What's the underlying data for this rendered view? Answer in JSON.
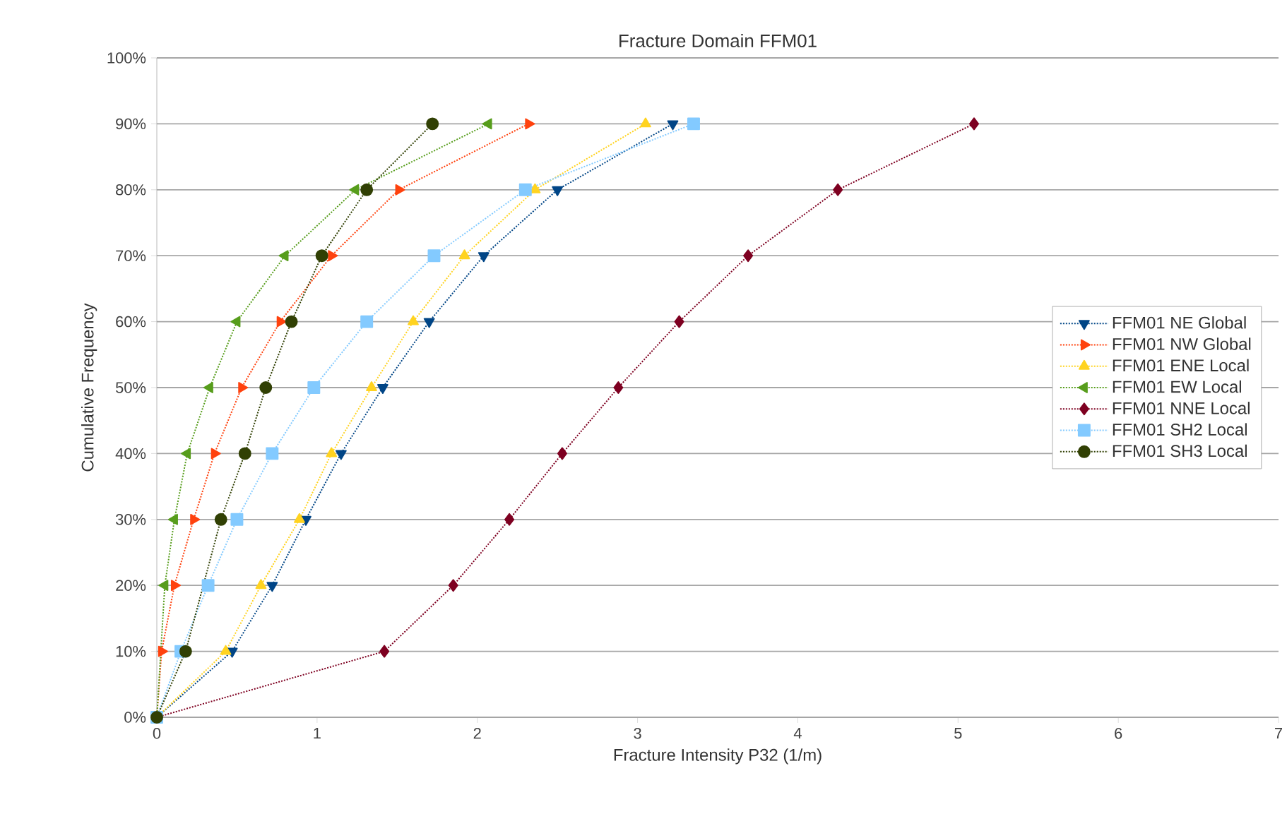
{
  "chart_data": {
    "type": "line",
    "title": "Fracture Domain FFM01",
    "xlabel": "Fracture Intensity P32 (1/m)",
    "ylabel": "Cumulative Frequency",
    "x": [
      0,
      10,
      20,
      30,
      40,
      50,
      60,
      70,
      80,
      90
    ],
    "series": [
      {
        "name": "FFM01 NE Global",
        "color": "#004586",
        "marker": "triangle down",
        "values": [
          0,
          0.47,
          0.72,
          0.93,
          1.15,
          1.41,
          1.7,
          2.04,
          2.5,
          3.22
        ]
      },
      {
        "name": "FFM01 NW Global",
        "color": "#ff420e",
        "marker": "triangle right",
        "values": [
          0,
          0.03,
          0.11,
          0.23,
          0.36,
          0.53,
          0.77,
          1.09,
          1.51,
          2.32
        ]
      },
      {
        "name": "FFM01 ENE Local",
        "color": "#ffd320",
        "marker": "triangle up",
        "values": [
          0,
          0.43,
          0.65,
          0.89,
          1.09,
          1.34,
          1.6,
          1.92,
          2.36,
          3.05
        ]
      },
      {
        "name": "FFM01 EW Local",
        "color": "#579d1c",
        "marker": "triangle left",
        "values": [
          0,
          null,
          0.05,
          0.11,
          0.19,
          0.33,
          0.5,
          0.8,
          1.24,
          2.07
        ]
      },
      {
        "name": "FFM01 NNE Local",
        "color": "#7e0021",
        "marker": "diamond",
        "values": [
          0,
          1.42,
          1.85,
          2.2,
          2.53,
          2.88,
          3.26,
          3.69,
          4.25,
          5.1
        ]
      },
      {
        "name": "FFM01 SH2 Local",
        "color": "#83caff",
        "marker": "square",
        "values": [
          0,
          0.15,
          0.32,
          0.5,
          0.72,
          0.98,
          1.31,
          1.73,
          2.3,
          3.35
        ]
      },
      {
        "name": "FFM01 SH3 Local",
        "color": "#314004",
        "marker": "circle",
        "values": [
          0,
          0.18,
          null,
          0.4,
          0.55,
          0.68,
          0.84,
          1.03,
          1.31,
          1.72
        ]
      }
    ],
    "orientation": "horizontal",
    "xlim": [
      0,
      7
    ],
    "xticks": [
      0,
      1,
      2,
      3,
      4,
      5,
      6,
      7
    ],
    "ylim": [
      0,
      100
    ],
    "yticks": [
      {
        "value": 0,
        "label": "0%"
      },
      {
        "value": 10,
        "label": "10%"
      },
      {
        "value": 20,
        "label": "20%"
      },
      {
        "value": 30,
        "label": "30%"
      },
      {
        "value": 40,
        "label": "40%"
      },
      {
        "value": 50,
        "label": "50%"
      },
      {
        "value": 60,
        "label": "60%"
      },
      {
        "value": 70,
        "label": "70%"
      },
      {
        "value": 80,
        "label": "80%"
      },
      {
        "value": 90,
        "label": "90%"
      },
      {
        "value": 100,
        "label": "100%"
      }
    ],
    "grid": "y",
    "legend": "right",
    "line_style": "dotted"
  }
}
